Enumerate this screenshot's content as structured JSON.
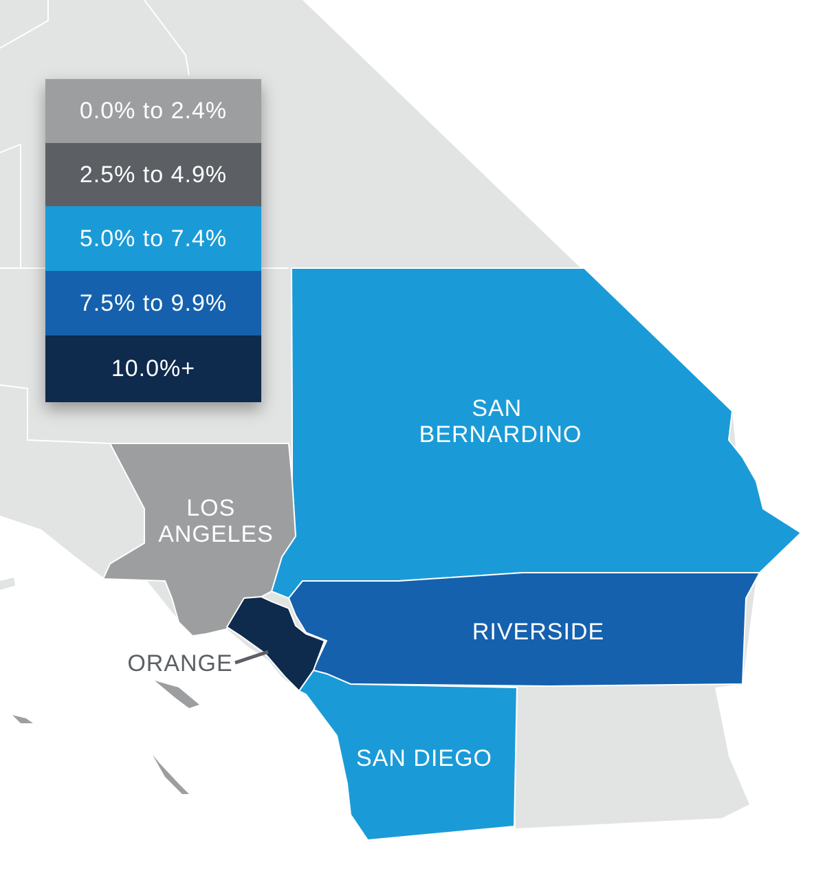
{
  "legend": {
    "items": [
      {
        "label": "0.0% to 2.4%",
        "color": "#9c9ea0"
      },
      {
        "label": "2.5% to 4.9%",
        "color": "#5c5f63"
      },
      {
        "label": "5.0% to 7.4%",
        "color": "#1a9bd7"
      },
      {
        "label": "7.5% to 9.9%",
        "color": "#1561ad"
      },
      {
        "label": "10.0%+",
        "color": "#0e2a4d"
      }
    ]
  },
  "counties": {
    "san_bernardino": {
      "line1": "SAN",
      "line2": "BERNARDINO",
      "bin": "5.0% to 7.4%"
    },
    "los_angeles": {
      "line1": "LOS",
      "line2": "ANGELES",
      "bin": "0.0% to 2.4%"
    },
    "riverside": {
      "name": "RIVERSIDE",
      "bin": "7.5% to 9.9%"
    },
    "orange": {
      "name": "ORANGE",
      "bin": "10.0%+"
    },
    "san_diego": {
      "name": "SAN DIEGO",
      "bin": "5.0% to 7.4%"
    }
  },
  "colors": {
    "background_land": "#e2e3e3",
    "county_border": "#ffffff",
    "label_light": "#ffffff",
    "label_dark": "#5c5f63"
  }
}
